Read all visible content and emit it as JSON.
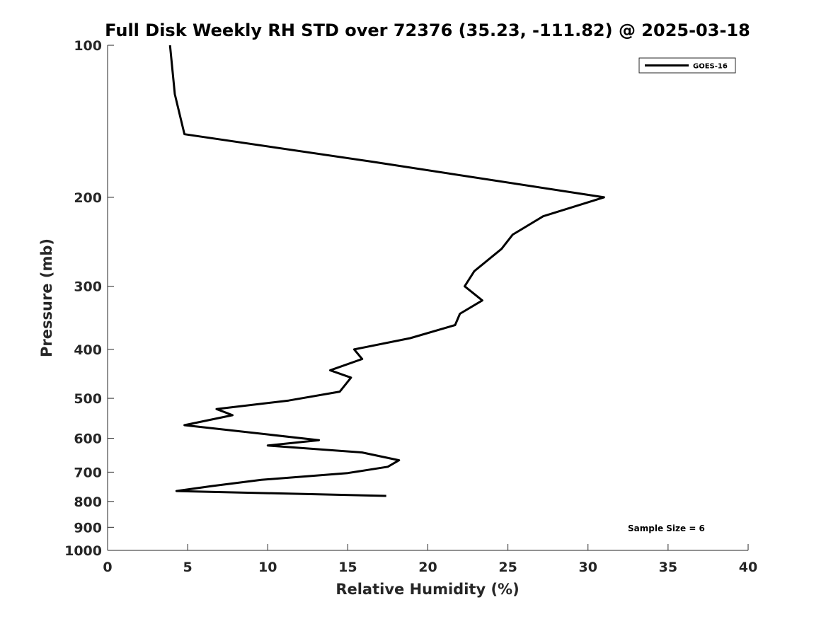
{
  "chart_data": {
    "type": "line",
    "title": "Full Disk Weekly RH STD over 72376 (35.23, -111.82) @ 2025-03-18",
    "xlabel": "Relative Humidity (%)",
    "ylabel": "Pressure (mb)",
    "xlim": [
      0,
      40
    ],
    "ylim": [
      1000,
      100
    ],
    "yscale": "log",
    "y_reversed": true,
    "x_ticks": [
      "0",
      "5",
      "10",
      "15",
      "20",
      "25",
      "30",
      "35",
      "40"
    ],
    "y_ticks": [
      "100",
      "200",
      "300",
      "400",
      "500",
      "600",
      "700",
      "800",
      "900",
      "1000"
    ],
    "grid": false,
    "legend_position": "top-right",
    "series": [
      {
        "name": "GOES-16",
        "color": "#000000",
        "points": [
          [
            3.9,
            100
          ],
          [
            4.2,
            125
          ],
          [
            4.8,
            150
          ],
          [
            16.5,
            170
          ],
          [
            31.0,
            200
          ],
          [
            27.2,
            218
          ],
          [
            25.3,
            237
          ],
          [
            24.6,
            253
          ],
          [
            22.9,
            280
          ],
          [
            22.3,
            300
          ],
          [
            23.4,
            320
          ],
          [
            22.0,
            340
          ],
          [
            21.7,
            358
          ],
          [
            18.9,
            380
          ],
          [
            15.4,
            400
          ],
          [
            15.9,
            418
          ],
          [
            13.9,
            440
          ],
          [
            15.2,
            455
          ],
          [
            14.5,
            485
          ],
          [
            11.3,
            505
          ],
          [
            6.8,
            525
          ],
          [
            7.8,
            540
          ],
          [
            4.8,
            565
          ],
          [
            13.2,
            605
          ],
          [
            10.0,
            620
          ],
          [
            15.9,
            640
          ],
          [
            18.2,
            663
          ],
          [
            17.5,
            683
          ],
          [
            15.0,
            703
          ],
          [
            9.6,
            725
          ],
          [
            6.5,
            746
          ],
          [
            4.3,
            763
          ],
          [
            17.4,
            780
          ]
        ]
      }
    ],
    "annotation": "Sample Size = 6"
  }
}
